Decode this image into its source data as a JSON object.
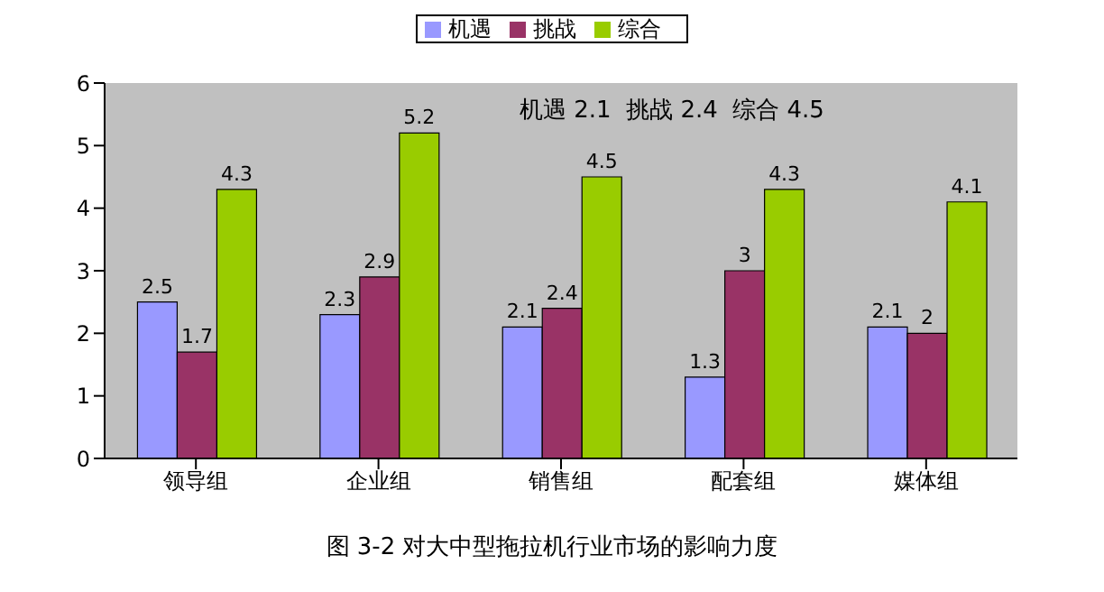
{
  "chart_data": {
    "type": "bar",
    "title": "图 3-2 对大中型拖拉机行业市场的影响力度",
    "categories": [
      "领导组",
      "企业组",
      "销售组",
      "配套组",
      "媒体组"
    ],
    "series": [
      {
        "name": "机遇",
        "color": "#9999ff",
        "values": [
          2.5,
          2.3,
          2.1,
          1.3,
          2.1
        ]
      },
      {
        "name": "挑战",
        "color": "#993366",
        "values": [
          1.7,
          2.9,
          2.4,
          3,
          2
        ]
      },
      {
        "name": "综合",
        "color": "#99cc00",
        "values": [
          4.3,
          5.2,
          4.5,
          4.3,
          4.1
        ]
      }
    ],
    "ylim": [
      0,
      6
    ],
    "yticks": [
      0,
      1,
      2,
      3,
      4,
      5,
      6
    ],
    "grid": false,
    "legend": "top",
    "data_labels": true,
    "annotations": [
      "机遇 2.1  挑战 2.4  综合 4.5"
    ]
  }
}
